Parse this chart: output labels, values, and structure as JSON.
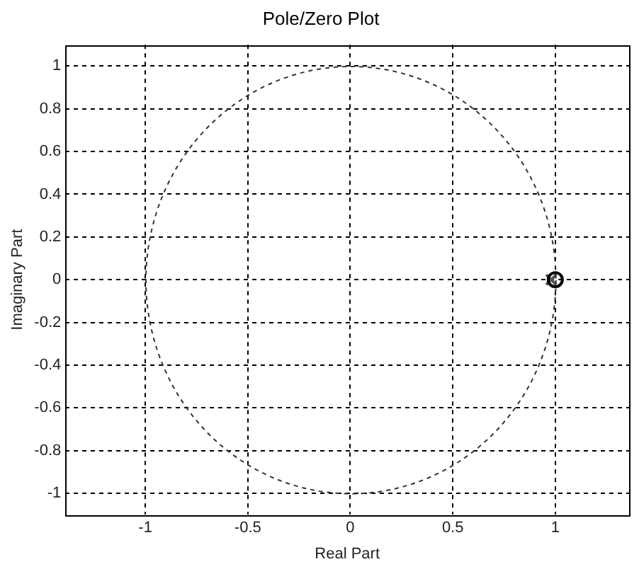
{
  "chart_data": {
    "type": "scatter",
    "title": "Pole/Zero Plot",
    "xlabel": "Real Part",
    "ylabel": "Imaginary Part",
    "xlim": [
      -1.39,
      1.36
    ],
    "ylim": [
      -1.1,
      1.1
    ],
    "xticks": [
      -1,
      -0.5,
      0,
      0.5,
      1
    ],
    "yticks": [
      -1,
      -0.8,
      -0.6,
      -0.4,
      -0.2,
      0,
      0.2,
      0.4,
      0.6,
      0.8,
      1
    ],
    "grid": true,
    "legend": false,
    "series": [
      {
        "color": "#000000",
        "marker": "circle",
        "x": [
          1
        ],
        "values": [
          0
        ]
      },
      {
        "color": "#555555",
        "marker": "cross",
        "x": [
          0.98
        ],
        "values": [
          0
        ]
      }
    ]
  }
}
